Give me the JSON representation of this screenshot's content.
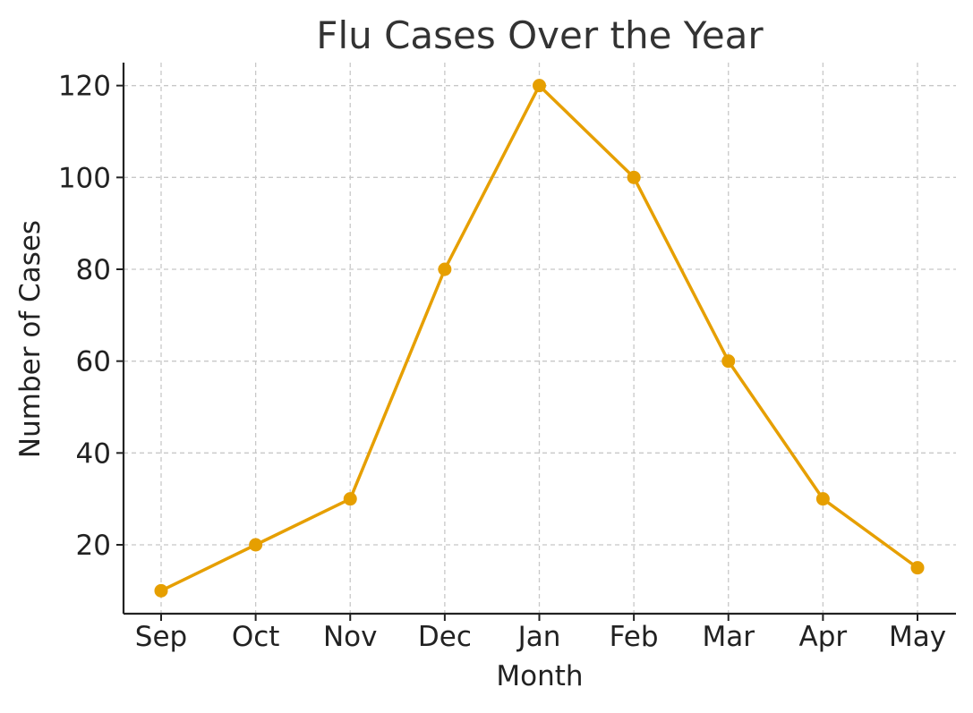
{
  "chart_data": {
    "type": "line",
    "title": "Flu Cases Over the Year",
    "xlabel": "Month",
    "ylabel": "Number of Cases",
    "categories": [
      "Sep",
      "Oct",
      "Nov",
      "Dec",
      "Jan",
      "Feb",
      "Mar",
      "Apr",
      "May"
    ],
    "series": [
      {
        "values": [
          10,
          20,
          30,
          80,
          120,
          100,
          60,
          30,
          15
        ],
        "color": "#E69F00"
      }
    ],
    "ylim": [
      5,
      125
    ],
    "yticks": [
      20,
      40,
      60,
      80,
      100,
      120
    ],
    "grid": true,
    "grid_style": "dashed",
    "markers": "circle",
    "legend": "none"
  }
}
